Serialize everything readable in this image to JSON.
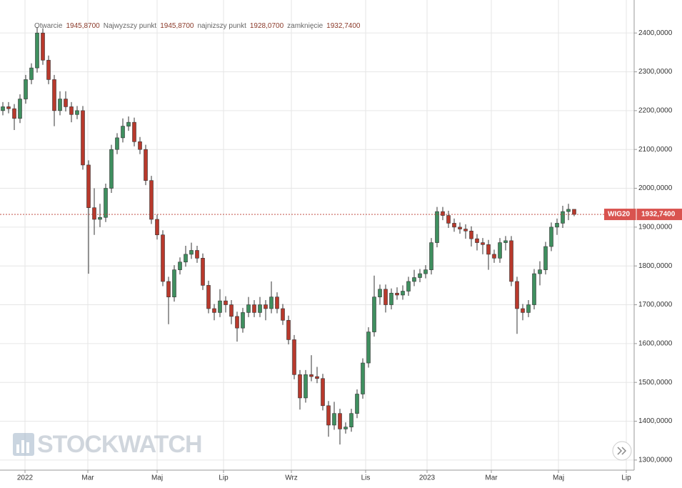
{
  "chart_data": {
    "type": "candlestick",
    "info": [
      {
        "label": "Otwarcie",
        "value": "1945,8700"
      },
      {
        "label": "Najwyzszy punkt",
        "value": "1945,8700"
      },
      {
        "label": "najnizszy punkt",
        "value": "1928,0700"
      },
      {
        "label": "zamknięcie",
        "value": "1932,7400"
      }
    ],
    "watermark": "STOCKWATCH",
    "series": [
      {
        "name": "WIG20",
        "up_color": "#3f8f5f",
        "down_color": "#b8392c",
        "last_label": "1932,7400",
        "open": [
          2200,
          2210,
          2205,
          2180,
          2230,
          2280,
          2310,
          2400,
          2330,
          2280,
          2200,
          2230,
          2210,
          2190,
          2200,
          2060,
          1950,
          1920,
          1925,
          2000,
          2100,
          2130,
          2160,
          2170,
          2120,
          2100,
          2020,
          1920,
          1880,
          1760,
          1720,
          1790,
          1810,
          1830,
          1840,
          1820,
          1750,
          1690,
          1680,
          1710,
          1700,
          1670,
          1640,
          1680,
          1700,
          1680,
          1700,
          1690,
          1720,
          1690,
          1660,
          1610,
          1520,
          1460,
          1520,
          1515,
          1510,
          1440,
          1390,
          1420,
          1380,
          1385,
          1420,
          1470,
          1550,
          1630,
          1720,
          1740,
          1700,
          1730,
          1725,
          1735,
          1760,
          1770,
          1780,
          1790,
          1860,
          1940,
          1930,
          1910,
          1900,
          1895,
          1890,
          1870,
          1860,
          1855,
          1830,
          1820,
          1860,
          1865,
          1760,
          1690,
          1680,
          1700,
          1780,
          1790,
          1850,
          1900,
          1910,
          1940,
          1945.87
        ],
        "high": [
          2222,
          2222,
          2217,
          2242,
          2292,
          2322,
          2415,
          2412,
          2342,
          2292,
          2250,
          2250,
          2222,
          2212,
          2212,
          2072,
          2000,
          1960,
          2012,
          2112,
          2142,
          2180,
          2185,
          2182,
          2132,
          2112,
          2032,
          1932,
          1892,
          1772,
          1802,
          1822,
          1852,
          1860,
          1852,
          1832,
          1762,
          1702,
          1740,
          1722,
          1712,
          1682,
          1692,
          1720,
          1712,
          1720,
          1712,
          1760,
          1732,
          1702,
          1672,
          1622,
          1532,
          1532,
          1570,
          1540,
          1522,
          1452,
          1450,
          1432,
          1397,
          1432,
          1482,
          1562,
          1642,
          1775,
          1752,
          1752,
          1742,
          1745,
          1750,
          1772,
          1790,
          1792,
          1802,
          1872,
          1952,
          1952,
          1942,
          1922,
          1912,
          1907,
          1902,
          1882,
          1872,
          1867,
          1842,
          1872,
          1877,
          1877,
          1772,
          1702,
          1712,
          1792,
          1812,
          1862,
          1912,
          1922,
          1955,
          1960,
          1945.87
        ],
        "low": [
          2188,
          2193,
          2150,
          2168,
          2218,
          2268,
          2298,
          2318,
          2268,
          2160,
          2188,
          2198,
          2170,
          2178,
          2048,
          1780,
          1880,
          1900,
          1913,
          1988,
          2088,
          2118,
          2148,
          2108,
          2088,
          2008,
          1908,
          1868,
          1748,
          1650,
          1708,
          1778,
          1798,
          1818,
          1808,
          1738,
          1678,
          1660,
          1668,
          1680,
          1650,
          1605,
          1628,
          1668,
          1668,
          1668,
          1660,
          1678,
          1678,
          1648,
          1598,
          1508,
          1430,
          1448,
          1503,
          1498,
          1428,
          1360,
          1378,
          1340,
          1368,
          1373,
          1408,
          1458,
          1538,
          1618,
          1700,
          1680,
          1688,
          1713,
          1713,
          1723,
          1748,
          1758,
          1768,
          1778,
          1848,
          1918,
          1898,
          1888,
          1883,
          1870,
          1850,
          1840,
          1830,
          1790,
          1808,
          1808,
          1840,
          1748,
          1625,
          1660,
          1668,
          1688,
          1750,
          1778,
          1838,
          1880,
          1898,
          1918,
          1928.07
        ],
        "close": [
          2210,
          2205,
          2180,
          2230,
          2280,
          2310,
          2400,
          2330,
          2280,
          2200,
          2230,
          2210,
          2190,
          2200,
          2060,
          1950,
          1920,
          1925,
          2000,
          2100,
          2130,
          2160,
          2170,
          2120,
          2100,
          2020,
          1920,
          1880,
          1760,
          1720,
          1790,
          1810,
          1830,
          1840,
          1820,
          1750,
          1690,
          1680,
          1710,
          1700,
          1670,
          1640,
          1680,
          1700,
          1680,
          1700,
          1690,
          1720,
          1690,
          1660,
          1610,
          1520,
          1460,
          1520,
          1515,
          1510,
          1440,
          1390,
          1420,
          1380,
          1385,
          1420,
          1470,
          1550,
          1630,
          1720,
          1740,
          1700,
          1730,
          1725,
          1735,
          1760,
          1770,
          1780,
          1790,
          1860,
          1940,
          1930,
          1910,
          1900,
          1895,
          1890,
          1870,
          1860,
          1855,
          1830,
          1820,
          1860,
          1865,
          1760,
          1690,
          1680,
          1700,
          1780,
          1790,
          1850,
          1900,
          1910,
          1940,
          1945.87,
          1932.74
        ]
      }
    ],
    "xlim": [
      -0.5,
      110.5
    ],
    "xticks": [
      {
        "value": 3.875,
        "label": "2022"
      },
      {
        "value": 14.875,
        "label": "Mar"
      },
      {
        "value": 27,
        "label": "Maj"
      },
      {
        "value": 38.625,
        "label": "Lip"
      },
      {
        "value": 50.5,
        "label": "Wrz"
      },
      {
        "value": 63.5,
        "label": "Lis"
      },
      {
        "value": 74.25,
        "label": "2023"
      },
      {
        "value": 85.5,
        "label": "Mar"
      },
      {
        "value": 97.25,
        "label": "Maj"
      },
      {
        "value": 109.125,
        "label": "Lip"
      }
    ],
    "ylim": [
      1274,
      2485
    ],
    "yticks": [
      {
        "value": 1300,
        "label": "1300,0000"
      },
      {
        "value": 1400,
        "label": "1400,0000"
      },
      {
        "value": 1500,
        "label": "1500,0000"
      },
      {
        "value": 1600,
        "label": "1600,0000"
      },
      {
        "value": 1700,
        "label": "1700,0000"
      },
      {
        "value": 1800,
        "label": "1800,0000"
      },
      {
        "value": 1900,
        "label": "1900,0000"
      },
      {
        "value": 2000,
        "label": "2000,0000"
      },
      {
        "value": 2100,
        "label": "2100,0000"
      },
      {
        "value": 2200,
        "label": "2200,0000"
      },
      {
        "value": 2300,
        "label": "2300,0000"
      },
      {
        "value": 2400,
        "label": "2400,0000"
      }
    ],
    "grid": true
  }
}
